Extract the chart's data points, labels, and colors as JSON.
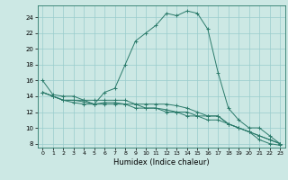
{
  "xlabel": "Humidex (Indice chaleur)",
  "ylabel": "",
  "xlim": [
    -0.5,
    23.5
  ],
  "ylim": [
    7.5,
    25.5
  ],
  "yticks": [
    8,
    10,
    12,
    14,
    16,
    18,
    20,
    22,
    24
  ],
  "xticks": [
    0,
    1,
    2,
    3,
    4,
    5,
    6,
    7,
    8,
    9,
    10,
    11,
    12,
    13,
    14,
    15,
    16,
    17,
    18,
    19,
    20,
    21,
    22,
    23
  ],
  "bg_color": "#cce8e4",
  "grid_color": "#99cccc",
  "line_color": "#2a7a6a",
  "curves": [
    [
      16.0,
      14.2,
      14.0,
      14.0,
      13.5,
      13.0,
      14.5,
      15.0,
      18.0,
      21.0,
      22.0,
      23.0,
      24.5,
      24.2,
      24.8,
      24.5,
      22.5,
      17.0,
      12.5,
      11.0,
      10.0,
      10.0,
      9.0,
      8.0
    ],
    [
      14.5,
      14.0,
      13.5,
      13.2,
      13.0,
      13.0,
      13.0,
      13.0,
      13.0,
      13.0,
      13.0,
      13.0,
      13.0,
      12.8,
      12.5,
      12.0,
      11.5,
      11.5,
      10.5,
      10.0,
      9.5,
      9.0,
      8.5,
      8.0
    ],
    [
      14.5,
      14.0,
      13.5,
      13.5,
      13.3,
      13.0,
      13.2,
      13.2,
      13.0,
      12.5,
      12.5,
      12.5,
      12.3,
      12.0,
      12.0,
      11.5,
      11.5,
      11.5,
      10.5,
      10.0,
      9.5,
      9.0,
      8.5,
      8.0
    ],
    [
      14.5,
      14.0,
      13.5,
      13.5,
      13.5,
      13.5,
      13.5,
      13.5,
      13.5,
      13.0,
      12.5,
      12.5,
      12.0,
      12.0,
      11.5,
      11.5,
      11.0,
      11.0,
      10.5,
      10.0,
      9.5,
      8.5,
      8.0,
      7.8
    ]
  ]
}
